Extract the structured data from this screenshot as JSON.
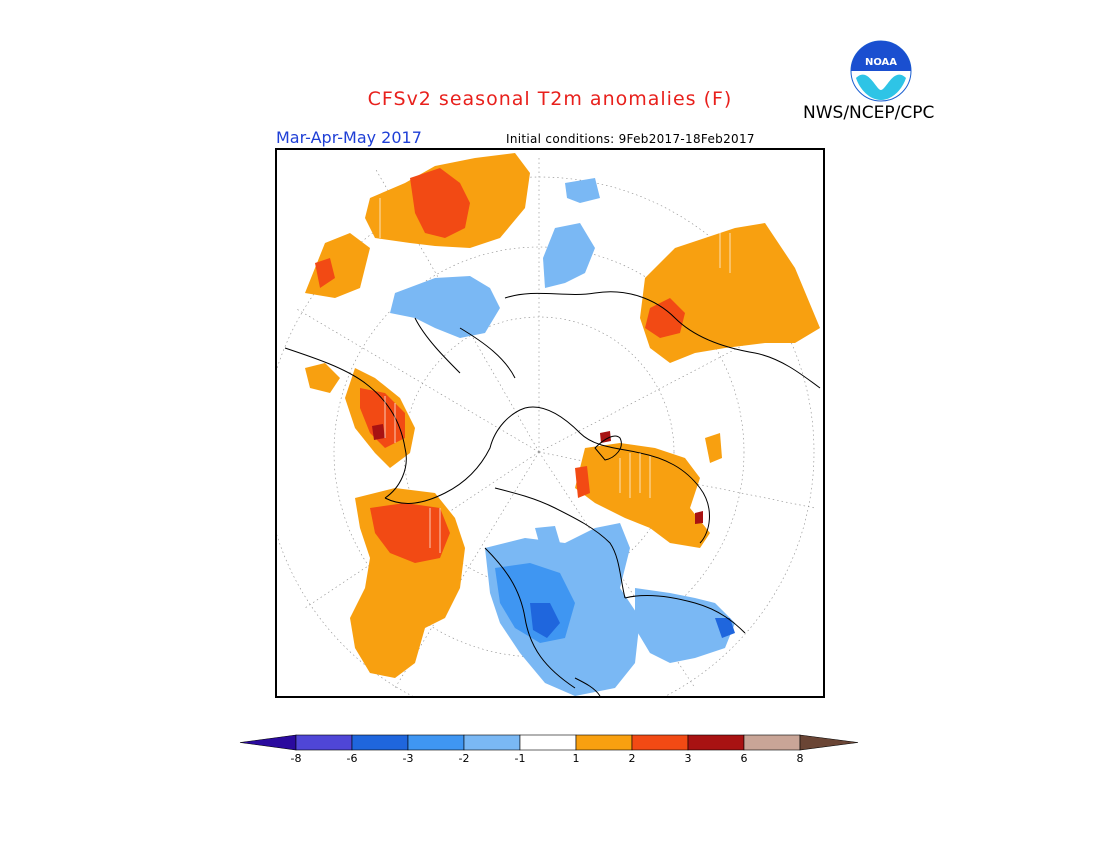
{
  "header": {
    "title": "CFSv2 seasonal T2m anomalies (F)",
    "agency": "NWS/NCEP/CPC",
    "season": "Mar-Apr-May 2017",
    "initial_conditions": "Initial conditions: 9Feb2017-18Feb2017",
    "logo_text": "NOAA"
  },
  "map": {
    "projection": "north-polar-stereographic",
    "grid": true
  },
  "legend": {
    "bins": [
      {
        "color": "#2a0a9e"
      },
      {
        "color": "#4f46d6"
      },
      {
        "color": "#1f66dd"
      },
      {
        "color": "#3f96f2"
      },
      {
        "color": "#7ab8f4"
      },
      {
        "color": "#ffffff"
      },
      {
        "color": "#f8a010"
      },
      {
        "color": "#f24a14"
      },
      {
        "color": "#a81212"
      },
      {
        "color": "#c9a597"
      },
      {
        "color": "#6a4535"
      }
    ],
    "ticks": [
      "-8",
      "-6",
      "-3",
      "-2",
      "-1",
      "1",
      "2",
      "3",
      "6",
      "8"
    ]
  }
}
